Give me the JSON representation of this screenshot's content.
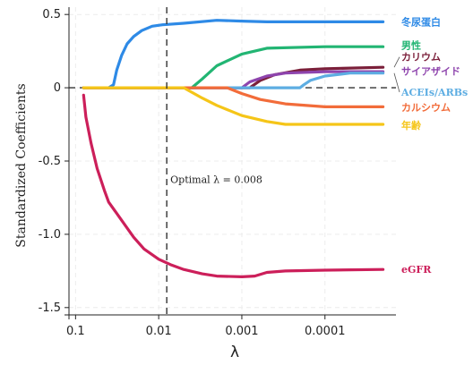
{
  "chart_data": {
    "type": "line",
    "xlabel": "λ",
    "ylabel": "Standardized Coefficients",
    "x_scale": "log-reversed",
    "xlim": [
      0.12,
      1.4e-05
    ],
    "ylim": [
      -1.55,
      0.55
    ],
    "x_ticks": [
      {
        "value": 0.1,
        "label": "0.1"
      },
      {
        "value": 0.01,
        "label": "0.01"
      },
      {
        "value": 0.001,
        "label": "0.001"
      },
      {
        "value": 0.0001,
        "label": "0.0001"
      }
    ],
    "y_ticks": [
      {
        "value": 0.5,
        "label": "0.5"
      },
      {
        "value": 0,
        "label": "0"
      },
      {
        "value": -0.5,
        "label": "-0.5"
      },
      {
        "value": -1.0,
        "label": "-1.0"
      },
      {
        "value": -1.5,
        "label": "-1.5"
      }
    ],
    "grid": true,
    "zero_line": true,
    "vline": {
      "x": 0.008,
      "label": "Optimal λ = 0.008",
      "label_y": -0.65
    },
    "series": [
      {
        "name": "冬尿蛋白",
        "color": "#2e8ae6",
        "points": [
          [
            0.08,
            0
          ],
          [
            0.04,
            0
          ],
          [
            0.035,
            0.02
          ],
          [
            0.032,
            0.12
          ],
          [
            0.028,
            0.22
          ],
          [
            0.024,
            0.3
          ],
          [
            0.02,
            0.35
          ],
          [
            0.016,
            0.39
          ],
          [
            0.012,
            0.42
          ],
          [
            0.009,
            0.43
          ],
          [
            0.005,
            0.44
          ],
          [
            0.002,
            0.46
          ],
          [
            0.001,
            0.455
          ],
          [
            0.0005,
            0.45
          ],
          [
            0.0001,
            0.45
          ],
          [
            2e-05,
            0.45
          ]
        ],
        "label_y": 0.45
      },
      {
        "name": "男性",
        "color": "#22b573",
        "points": [
          [
            0.08,
            0
          ],
          [
            0.004,
            0
          ],
          [
            0.003,
            0.06
          ],
          [
            0.002,
            0.15
          ],
          [
            0.001,
            0.23
          ],
          [
            0.0005,
            0.27
          ],
          [
            0.0001,
            0.28
          ],
          [
            2e-05,
            0.28
          ]
        ],
        "label_y": 0.29
      },
      {
        "name": "カリウム",
        "color": "#7b1f3a",
        "points": [
          [
            0.08,
            0
          ],
          [
            0.0008,
            0
          ],
          [
            0.0006,
            0.05
          ],
          [
            0.0004,
            0.09
          ],
          [
            0.0002,
            0.12
          ],
          [
            0.0001,
            0.13
          ],
          [
            2e-05,
            0.14
          ]
        ],
        "label_y": 0.21
      },
      {
        "name": "サイアザイド",
        "color": "#8e44ad",
        "points": [
          [
            0.08,
            0
          ],
          [
            0.001,
            0
          ],
          [
            0.0008,
            0.04
          ],
          [
            0.0005,
            0.08
          ],
          [
            0.0003,
            0.1
          ],
          [
            0.0001,
            0.11
          ],
          [
            2e-05,
            0.11
          ]
        ],
        "label_y": 0.115
      },
      {
        "name": "ACEIs/ARBs",
        "color": "#5dade2",
        "points": [
          [
            0.08,
            0
          ],
          [
            0.0002,
            0
          ],
          [
            0.00018,
            0.02
          ],
          [
            0.00015,
            0.05
          ],
          [
            0.0001,
            0.08
          ],
          [
            5e-05,
            0.1
          ],
          [
            2e-05,
            0.1
          ]
        ],
        "label_y": -0.03
      },
      {
        "name": "カルシウム",
        "color": "#f26c3a",
        "points": [
          [
            0.08,
            0
          ],
          [
            0.0015,
            0
          ],
          [
            0.001,
            -0.04
          ],
          [
            0.0006,
            -0.08
          ],
          [
            0.0003,
            -0.11
          ],
          [
            0.0001,
            -0.13
          ],
          [
            2e-05,
            -0.13
          ]
        ],
        "label_y": -0.135
      },
      {
        "name": "年齢",
        "color": "#f5c518",
        "points": [
          [
            0.08,
            0
          ],
          [
            0.005,
            0
          ],
          [
            0.003,
            -0.07
          ],
          [
            0.002,
            -0.12
          ],
          [
            0.001,
            -0.19
          ],
          [
            0.0005,
            -0.23
          ],
          [
            0.0003,
            -0.25
          ],
          [
            0.0001,
            -0.25
          ],
          [
            2e-05,
            -0.25
          ]
        ],
        "label_y": -0.255
      },
      {
        "name": "eGFR",
        "color": "#cc1f5a",
        "points": [
          [
            0.08,
            -0.05
          ],
          [
            0.075,
            -0.2
          ],
          [
            0.065,
            -0.38
          ],
          [
            0.055,
            -0.55
          ],
          [
            0.045,
            -0.7
          ],
          [
            0.04,
            -0.78
          ],
          [
            0.03,
            -0.88
          ],
          [
            0.02,
            -1.02
          ],
          [
            0.015,
            -1.1
          ],
          [
            0.01,
            -1.17
          ],
          [
            0.007,
            -1.21
          ],
          [
            0.005,
            -1.24
          ],
          [
            0.003,
            -1.27
          ],
          [
            0.002,
            -1.285
          ],
          [
            0.001,
            -1.29
          ],
          [
            0.0007,
            -1.285
          ],
          [
            0.0005,
            -1.26
          ],
          [
            0.0003,
            -1.25
          ],
          [
            0.0001,
            -1.245
          ],
          [
            2e-05,
            -1.24
          ]
        ],
        "label_y": -1.24
      }
    ]
  }
}
